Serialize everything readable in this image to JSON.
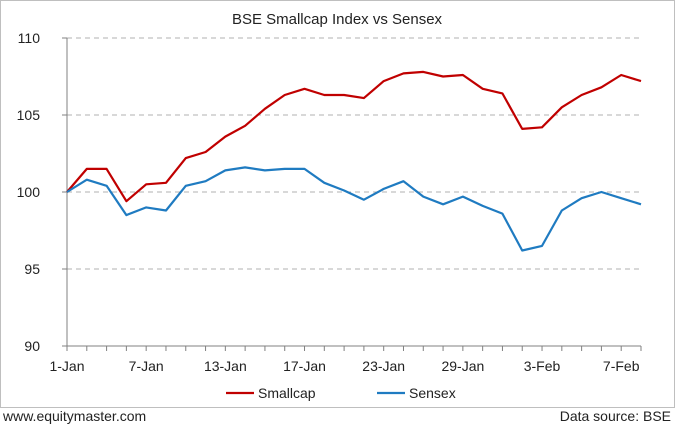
{
  "chart_data": {
    "type": "line",
    "title": "BSE Smallcap Index vs Sensex",
    "xlabel": "",
    "ylabel": "",
    "ylim": [
      90,
      110
    ],
    "y_ticks": [
      90,
      95,
      100,
      105,
      110
    ],
    "x_tick_labels": [
      "1-Jan",
      "7-Jan",
      "13-Jan",
      "17-Jan",
      "23-Jan",
      "29-Jan",
      "3-Feb",
      "7-Feb"
    ],
    "x_tick_positions": [
      0,
      4,
      8,
      12,
      16,
      20,
      24,
      28
    ],
    "x": [
      0,
      1,
      2,
      3,
      4,
      5,
      6,
      7,
      8,
      9,
      10,
      11,
      12,
      13,
      14,
      15,
      16,
      17,
      18,
      19,
      20,
      21,
      22,
      23,
      24,
      25,
      26,
      27,
      28,
      29
    ],
    "grid": true,
    "legend_position": "bottom",
    "series": [
      {
        "name": "Smallcap",
        "color": "#c00000",
        "values": [
          100.0,
          101.5,
          101.5,
          99.4,
          100.5,
          100.6,
          102.2,
          102.6,
          103.6,
          104.3,
          105.4,
          106.3,
          106.7,
          106.3,
          106.3,
          106.1,
          107.2,
          107.7,
          107.8,
          107.5,
          107.6,
          106.7,
          106.4,
          104.1,
          104.2,
          105.5,
          106.3,
          106.8,
          107.6,
          107.2
        ]
      },
      {
        "name": "Sensex",
        "color": "#1f7bc1",
        "values": [
          100.0,
          100.8,
          100.4,
          98.5,
          99.0,
          98.8,
          100.4,
          100.7,
          101.4,
          101.6,
          101.4,
          101.5,
          101.5,
          100.6,
          100.1,
          99.5,
          100.2,
          100.7,
          99.7,
          99.2,
          99.7,
          99.1,
          98.6,
          96.2,
          96.5,
          98.8,
          99.6,
          100.0,
          99.6,
          99.2
        ]
      }
    ]
  },
  "footer": {
    "left": "www.equitymaster.com",
    "right": "Data source: BSE"
  }
}
